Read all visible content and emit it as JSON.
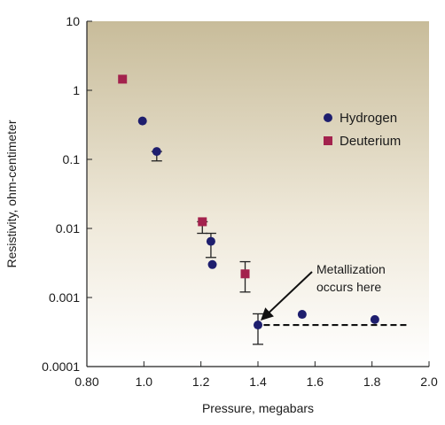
{
  "chart_data": {
    "type": "scatter",
    "xlabel": "Pressure, megabars",
    "ylabel": "Resistivity, ohm-centimeter",
    "xlim": [
      0.8,
      2.0
    ],
    "ylim": [
      0.0001,
      10
    ],
    "yscale": "log",
    "x_ticks": [
      "0.80",
      "1.0",
      "1.2",
      "1.4",
      "1.6",
      "1.8",
      "2.0"
    ],
    "y_ticks": [
      "0.0001",
      "0.001",
      "0.01",
      "0.1",
      "1",
      "10"
    ],
    "grid": false,
    "legend_position": "top-right",
    "series": [
      {
        "name": "Hydrogen",
        "marker": "circle",
        "color": "#1e1e6e",
        "points": [
          {
            "x": 0.995,
            "y": 0.36
          },
          {
            "x": 1.045,
            "y": 0.13,
            "err_low": 0.095,
            "err_high": 0.13
          },
          {
            "x": 1.235,
            "y": 0.0065,
            "err_low": 0.0038,
            "err_high": 0.0085
          },
          {
            "x": 1.24,
            "y": 0.003
          },
          {
            "x": 1.4,
            "y": 0.0004,
            "err_low": 0.00021,
            "err_high": 0.00058
          },
          {
            "x": 1.555,
            "y": 0.00057
          },
          {
            "x": 1.81,
            "y": 0.00048
          }
        ]
      },
      {
        "name": "Deuterium",
        "marker": "square",
        "color": "#a3224d",
        "points": [
          {
            "x": 0.925,
            "y": 1.45
          },
          {
            "x": 1.205,
            "y": 0.0125,
            "err_low": 0.0085,
            "err_high": 0.0125
          },
          {
            "x": 1.355,
            "y": 0.0022,
            "err_low": 0.0012,
            "err_high": 0.0033
          }
        ]
      }
    ],
    "reference_line": {
      "y": 0.0004,
      "x_start": 1.42,
      "x_end": 1.93,
      "style": "dashed"
    },
    "annotation": {
      "lines": [
        "Metallization",
        "occurs here"
      ],
      "target": {
        "x": 1.4,
        "y": 0.0004
      }
    },
    "colors": {
      "plot_bg_top": "#c8bc9a",
      "plot_bg_bottom": "#ffffff"
    }
  }
}
